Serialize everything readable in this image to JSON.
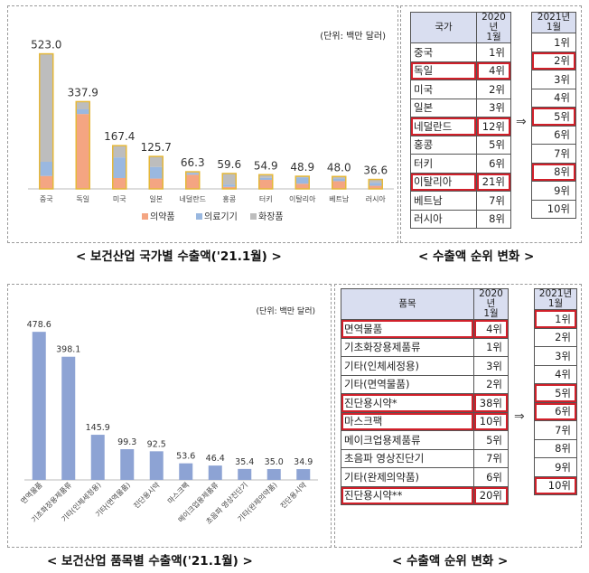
{
  "top": {
    "caption": "< 보건산업 국가별 수출액('21.1월) >",
    "unit": "(단위: 백만 달러)",
    "ranking_caption": "< 수출액 순위 변화 >",
    "table": {
      "col_name": "국가",
      "col_2020": "2020년\n1월",
      "col_2021": "2021년\n1월",
      "rows": [
        {
          "name": "중국",
          "r2020": "1위",
          "r2021": "1위",
          "hl": false
        },
        {
          "name": "독일",
          "r2020": "4위",
          "r2021": "2위",
          "hl": true
        },
        {
          "name": "미국",
          "r2020": "2위",
          "r2021": "3위",
          "hl": false
        },
        {
          "name": "일본",
          "r2020": "3위",
          "r2021": "4위",
          "hl": false
        },
        {
          "name": "네덜란드",
          "r2020": "12위",
          "r2021": "5위",
          "hl": true
        },
        {
          "name": "홍콩",
          "r2020": "5위",
          "r2021": "6위",
          "hl": false
        },
        {
          "name": "터키",
          "r2020": "6위",
          "r2021": "7위",
          "hl": false
        },
        {
          "name": "이탈리아",
          "r2020": "21위",
          "r2021": "8위",
          "hl": true
        },
        {
          "name": "베트남",
          "r2020": "7위",
          "r2021": "9위",
          "hl": false
        },
        {
          "name": "러시아",
          "r2020": "8위",
          "r2021": "10위",
          "hl": false
        }
      ]
    },
    "arrow": "⇒"
  },
  "bottom": {
    "caption": "< 보건산업 품목별 수출액('21.1월) >",
    "unit": "(단위: 백만 달러)",
    "ranking_caption": "< 수출액 순위 변화 >",
    "table": {
      "col_name": "품목",
      "col_2020": "2020년\n1월",
      "col_2021": "2021년\n1월",
      "rows": [
        {
          "name": "면역물품",
          "r2020": "4위",
          "r2021": "1위",
          "hl": true
        },
        {
          "name": "기초화장용제품류",
          "r2020": "1위",
          "r2021": "2위",
          "hl": false
        },
        {
          "name": "기타(인체세정용)",
          "r2020": "3위",
          "r2021": "3위",
          "hl": false
        },
        {
          "name": "기타(면역물품)",
          "r2020": "2위",
          "r2021": "4위",
          "hl": false
        },
        {
          "name": "진단용시약*",
          "r2020": "38위",
          "r2021": "5위",
          "hl": true
        },
        {
          "name": "마스크팩",
          "r2020": "10위",
          "r2021": "6위",
          "hl": true
        },
        {
          "name": "메이크업용제품류",
          "r2020": "5위",
          "r2021": "7위",
          "hl": false
        },
        {
          "name": "초음파 영상진단기",
          "r2020": "7위",
          "r2021": "8위",
          "hl": false
        },
        {
          "name": "기타(완제의약품)",
          "r2020": "6위",
          "r2021": "9위",
          "hl": false
        },
        {
          "name": "진단용시약**",
          "r2020": "20위",
          "r2021": "10위",
          "hl": true
        }
      ]
    },
    "arrow": "⇒"
  },
  "colors": {
    "pharma": "#f4a582",
    "device": "#9ab8e0",
    "cosmetic": "#bdbdbd",
    "bar_border": "#e5b83a",
    "single_bar": "#8da3d4",
    "highlight": "#d0202a",
    "header_bg": "#d9def0"
  },
  "chart_data": [
    {
      "type": "bar",
      "stacked": true,
      "title": "",
      "xlabel": "",
      "ylabel": "",
      "ylim": [
        0,
        560
      ],
      "grid": false,
      "legend": "bottom",
      "categories": [
        "중국",
        "독일",
        "미국",
        "일본",
        "네덜란드",
        "홍콩",
        "터키",
        "이탈리아",
        "베트남",
        "러시아"
      ],
      "totals": [
        523.0,
        337.9,
        167.4,
        125.7,
        66.3,
        59.6,
        54.9,
        48.9,
        48.0,
        36.6
      ],
      "total_labels": [
        "523.0",
        "337.9",
        "167.4",
        "125.7",
        "66.3",
        "59.6",
        "54.9",
        "48.9",
        "48.0",
        "36.6"
      ],
      "series": [
        {
          "name": "의약품",
          "values": [
            50,
            290,
            42,
            40,
            55,
            8,
            35,
            20,
            30,
            12
          ]
        },
        {
          "name": "의료기기",
          "values": [
            55,
            18,
            80,
            45,
            7,
            9,
            8,
            25,
            10,
            12
          ]
        },
        {
          "name": "화장품",
          "values": [
            418,
            29.9,
            45.4,
            40.7,
            4.3,
            42.6,
            11.9,
            3.9,
            8,
            12.6
          ]
        }
      ]
    },
    {
      "type": "bar",
      "title": "",
      "xlabel": "",
      "ylabel": "",
      "ylim": [
        0,
        520
      ],
      "grid": false,
      "categories": [
        "면역물품",
        "기초화장용제품류",
        "기타(인체세정용)",
        "기타(면역물품)",
        "진단용시약",
        "마스크팩",
        "메이크업용제품류",
        "초음파 영상진단기",
        "기타(완제의약품)",
        "진단용시약"
      ],
      "values": [
        478.6,
        398.1,
        145.9,
        99.3,
        92.5,
        53.6,
        46.4,
        35.4,
        35.0,
        34.9
      ],
      "value_labels": [
        "478.6",
        "398.1",
        "145.9",
        "99.3",
        "92.5",
        "53.6",
        "46.4",
        "35.4",
        "35.0",
        "34.9"
      ]
    }
  ]
}
